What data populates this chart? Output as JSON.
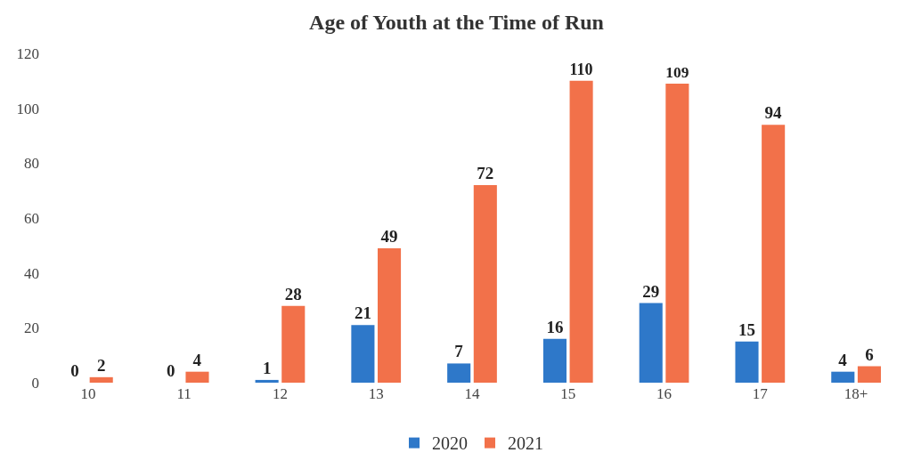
{
  "chart_data": {
    "type": "bar",
    "title": "Age of Youth at the Time of Run",
    "categories": [
      "10",
      "11",
      "12",
      "13",
      "14",
      "15",
      "16",
      "17",
      "18+"
    ],
    "series": [
      {
        "name": "2020",
        "color": "#2e78c9",
        "values": [
          0,
          0,
          1,
          21,
          7,
          16,
          29,
          15,
          4
        ]
      },
      {
        "name": "2021",
        "color": "#f2714a",
        "values": [
          2,
          4,
          28,
          49,
          72,
          110,
          109,
          94,
          6
        ]
      }
    ],
    "ylim": [
      0,
      120
    ],
    "yticks": [
      0,
      20,
      40,
      60,
      80,
      100,
      120
    ],
    "grid": false,
    "legend": "bottom",
    "data_labels": true
  }
}
